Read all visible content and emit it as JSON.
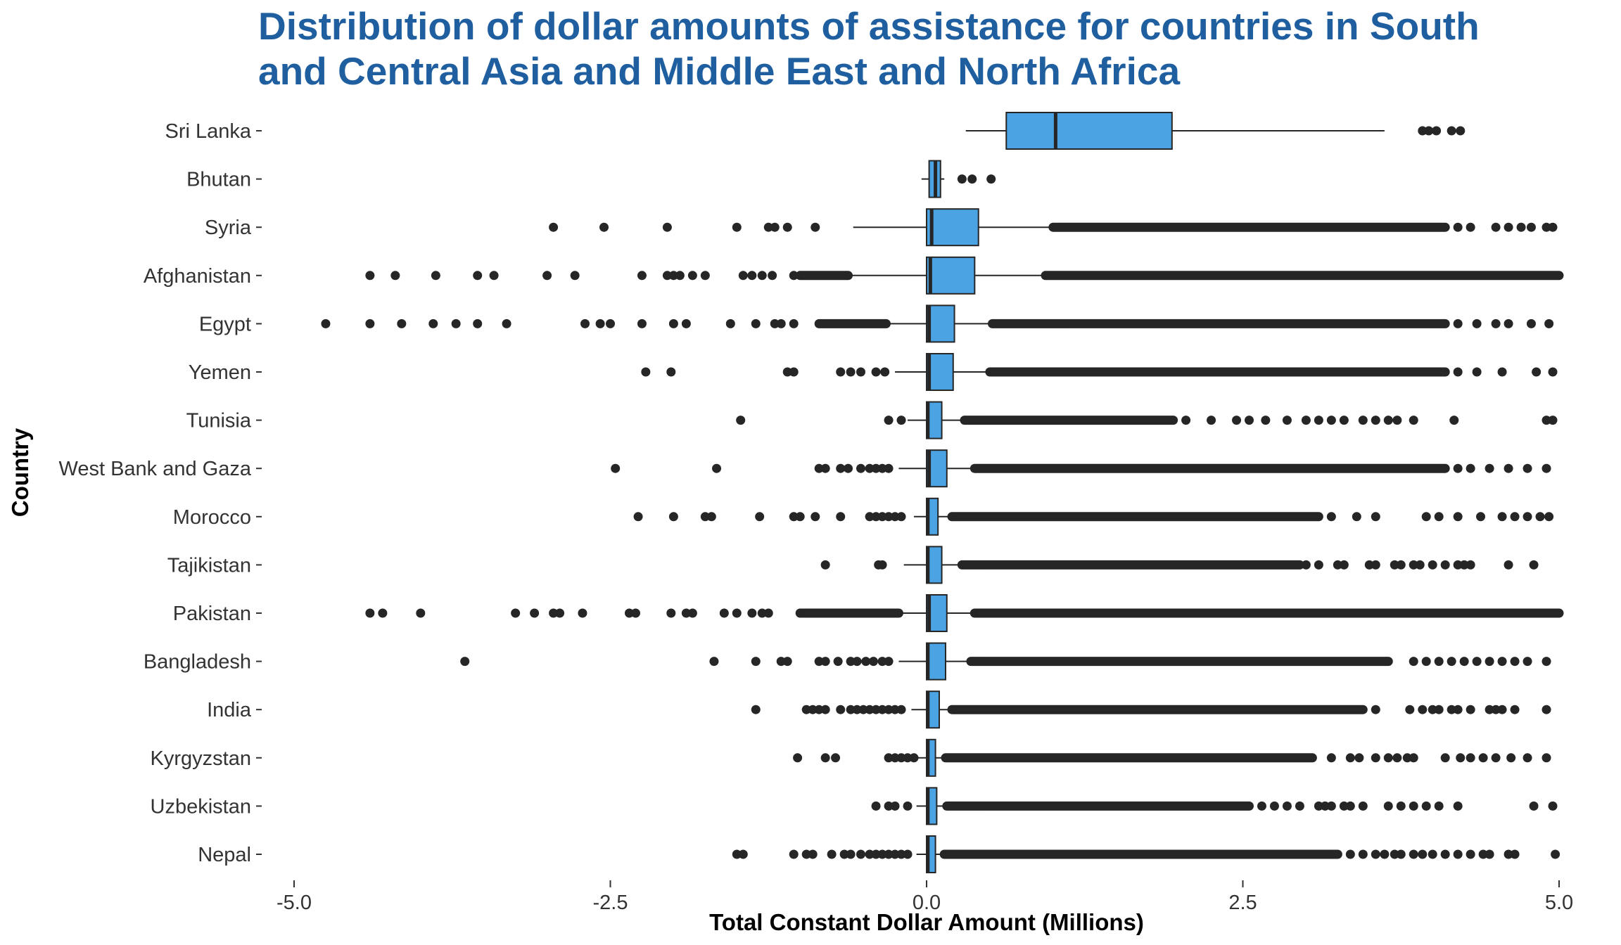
{
  "chart_data": {
    "type": "boxplot",
    "title_lines": [
      "Distribution of dollar amounts of assistance for countries in South",
      "and Central Asia and Middle East and North Africa"
    ],
    "xlabel": "Total Constant Dollar Amount (Millions)",
    "ylabel": "Country",
    "xlim": [
      -5.0,
      5.0
    ],
    "x_ticks": [
      -5.0,
      -2.5,
      0.0,
      2.5,
      5.0
    ],
    "x_tick_labels": [
      "-5.0",
      "-2.5",
      "0.0",
      "2.5",
      "5.0"
    ],
    "grid": false,
    "legend": "none",
    "colors": {
      "title": "#1F5FA0",
      "box_fill": "#4BA3E3",
      "box_stroke": "#262626",
      "outlier": "#262626"
    },
    "categories": [
      "Sri Lanka",
      "Bhutan",
      "Syria",
      "Afghanistan",
      "Egypt",
      "Yemen",
      "Tunisia",
      "West Bank and Gaza",
      "Morocco",
      "Tajikistan",
      "Pakistan",
      "Bangladesh",
      "India",
      "Kyrgyzstan",
      "Uzbekistan",
      "Nepal"
    ],
    "series": [
      {
        "country": "Sri Lanka",
        "whisker_low": 0.31,
        "q1": 0.63,
        "median": 1.02,
        "q3": 1.94,
        "whisker_high": 3.62,
        "outliers_low": [],
        "outliers_high": [
          3.92,
          3.97,
          4.03,
          4.15,
          4.22
        ],
        "dense_high": null,
        "dense_low": null
      },
      {
        "country": "Bhutan",
        "whisker_low": -0.04,
        "q1": 0.02,
        "median": 0.07,
        "q3": 0.11,
        "whisker_high": 0.14,
        "outliers_low": [],
        "outliers_high": [
          0.28,
          0.36,
          0.51
        ],
        "dense_high": null,
        "dense_low": null
      },
      {
        "country": "Syria",
        "whisker_low": -0.58,
        "q1": 0.0,
        "median": 0.04,
        "q3": 0.41,
        "whisker_high": 1.0,
        "outliers_low": [
          -2.95,
          -2.55,
          -2.05,
          -1.5,
          -1.25,
          -1.2,
          -1.1,
          -0.88
        ],
        "outliers_high": [
          4.2,
          4.3,
          4.5,
          4.6,
          4.7,
          4.78,
          4.9,
          4.95
        ],
        "dense_high": [
          1.0,
          4.1
        ],
        "dense_low": null
      },
      {
        "country": "Afghanistan",
        "whisker_low": -0.62,
        "q1": 0.0,
        "median": 0.03,
        "q3": 0.38,
        "whisker_high": 0.94,
        "outliers_low": [
          -4.4,
          -4.2,
          -3.88,
          -3.55,
          -3.42,
          -3.0,
          -2.78,
          -2.25,
          -2.05,
          -2.0,
          -1.95,
          -1.85,
          -1.75,
          -1.45,
          -1.38,
          -1.3,
          -1.22,
          -1.05
        ],
        "outliers_high": [],
        "dense_high": [
          0.94,
          5.0
        ],
        "dense_low": [
          -1.0,
          -0.62
        ]
      },
      {
        "country": "Egypt",
        "whisker_low": -0.32,
        "q1": 0.0,
        "median": 0.02,
        "q3": 0.22,
        "whisker_high": 0.52,
        "outliers_low": [
          -4.75,
          -4.4,
          -4.15,
          -3.9,
          -3.72,
          -3.55,
          -3.32,
          -2.7,
          -2.58,
          -2.5,
          -2.25,
          -2.0,
          -1.9,
          -1.55,
          -1.35,
          -1.2,
          -1.15,
          -1.05
        ],
        "outliers_high": [
          4.2,
          4.35,
          4.5,
          4.6,
          4.78,
          4.92
        ],
        "dense_high": [
          0.52,
          4.1
        ],
        "dense_low": [
          -0.85,
          -0.32
        ]
      },
      {
        "country": "Yemen",
        "whisker_low": -0.25,
        "q1": 0.0,
        "median": 0.02,
        "q3": 0.21,
        "whisker_high": 0.5,
        "outliers_low": [
          -2.22,
          -2.02,
          -1.1,
          -1.05,
          -0.68,
          -0.6,
          -0.52,
          -0.4,
          -0.33
        ],
        "outliers_high": [
          4.2,
          4.35,
          4.55,
          4.82,
          4.95
        ],
        "dense_high": [
          0.5,
          4.1
        ],
        "dense_low": null
      },
      {
        "country": "Tunisia",
        "whisker_low": -0.15,
        "q1": 0.0,
        "median": 0.01,
        "q3": 0.12,
        "whisker_high": 0.3,
        "outliers_low": [
          -1.47,
          -0.3,
          -0.2
        ],
        "outliers_high": [
          2.05,
          2.25,
          2.45,
          2.55,
          2.68,
          2.85,
          3.0,
          3.1,
          3.2,
          3.3,
          3.45,
          3.55,
          3.65,
          3.72,
          3.85,
          4.17,
          4.9,
          4.95
        ],
        "dense_high": [
          0.3,
          1.95
        ],
        "dense_low": null
      },
      {
        "country": "West Bank and Gaza",
        "whisker_low": -0.22,
        "q1": 0.0,
        "median": 0.02,
        "q3": 0.16,
        "whisker_high": 0.38,
        "outliers_low": [
          -2.46,
          -1.66,
          -0.85,
          -0.8,
          -0.68,
          -0.62,
          -0.52,
          -0.45,
          -0.4,
          -0.35,
          -0.3
        ],
        "outliers_high": [
          4.2,
          4.3,
          4.45,
          4.6,
          4.75,
          4.9
        ],
        "dense_high": [
          0.38,
          4.1
        ],
        "dense_low": null
      },
      {
        "country": "Morocco",
        "whisker_low": -0.1,
        "q1": 0.0,
        "median": 0.01,
        "q3": 0.09,
        "whisker_high": 0.2,
        "outliers_low": [
          -2.28,
          -2.0,
          -1.75,
          -1.7,
          -1.32,
          -1.05,
          -1.0,
          -0.88,
          -0.68,
          -0.45,
          -0.4,
          -0.35,
          -0.3,
          -0.25,
          -0.2
        ],
        "outliers_high": [
          3.2,
          3.4,
          3.55,
          3.95,
          4.05,
          4.2,
          4.38,
          4.55,
          4.65,
          4.75,
          4.85,
          4.92
        ],
        "dense_high": [
          0.2,
          3.1
        ],
        "dense_low": null
      },
      {
        "country": "Tajikistan",
        "whisker_low": -0.18,
        "q1": 0.0,
        "median": 0.01,
        "q3": 0.12,
        "whisker_high": 0.28,
        "outliers_low": [
          -0.8,
          -0.38,
          -0.35
        ],
        "outliers_high": [
          3.0,
          3.1,
          3.25,
          3.3,
          3.5,
          3.55,
          3.7,
          3.75,
          3.85,
          3.9,
          4.0,
          4.1,
          4.2,
          4.25,
          4.3,
          4.6,
          4.8
        ],
        "dense_high": [
          0.28,
          2.95
        ],
        "dense_low": null
      },
      {
        "country": "Pakistan",
        "whisker_low": -0.22,
        "q1": 0.0,
        "median": 0.02,
        "q3": 0.16,
        "whisker_high": 0.38,
        "outliers_low": [
          -4.4,
          -4.3,
          -4.0,
          -3.25,
          -3.1,
          -2.95,
          -2.9,
          -2.72,
          -2.35,
          -2.3,
          -2.02,
          -1.9,
          -1.85,
          -1.6,
          -1.5,
          -1.38,
          -1.3,
          -1.25
        ],
        "outliers_high": [],
        "dense_high": [
          0.38,
          5.0
        ],
        "dense_low": [
          -1.0,
          -0.22
        ]
      },
      {
        "country": "Bangladesh",
        "whisker_low": -0.22,
        "q1": 0.0,
        "median": 0.01,
        "q3": 0.15,
        "whisker_high": 0.35,
        "outliers_low": [
          -3.65,
          -1.68,
          -1.35,
          -1.15,
          -1.1,
          -0.85,
          -0.8,
          -0.7,
          -0.6,
          -0.55,
          -0.48,
          -0.42,
          -0.35,
          -0.3
        ],
        "outliers_high": [
          3.85,
          3.95,
          4.05,
          4.15,
          4.25,
          4.35,
          4.45,
          4.55,
          4.65,
          4.75,
          4.9
        ],
        "dense_high": [
          0.35,
          3.65
        ],
        "dense_low": null
      },
      {
        "country": "India",
        "whisker_low": -0.12,
        "q1": 0.0,
        "median": 0.01,
        "q3": 0.1,
        "whisker_high": 0.2,
        "outliers_low": [
          -1.35,
          -0.95,
          -0.9,
          -0.85,
          -0.8,
          -0.68,
          -0.6,
          -0.55,
          -0.5,
          -0.45,
          -0.4,
          -0.35,
          -0.3,
          -0.25,
          -0.2
        ],
        "outliers_high": [
          3.55,
          3.82,
          3.92,
          4.0,
          4.05,
          4.15,
          4.2,
          4.3,
          4.45,
          4.5,
          4.55,
          4.65,
          4.9
        ],
        "dense_high": [
          0.2,
          3.45
        ],
        "dense_low": null
      },
      {
        "country": "Kyrgyzstan",
        "whisker_low": -0.08,
        "q1": 0.0,
        "median": 0.01,
        "q3": 0.07,
        "whisker_high": 0.15,
        "outliers_low": [
          -1.02,
          -0.8,
          -0.72,
          -0.3,
          -0.25,
          -0.2,
          -0.15,
          -0.1
        ],
        "outliers_high": [
          3.2,
          3.35,
          3.42,
          3.55,
          3.65,
          3.72,
          3.8,
          3.85,
          4.1,
          4.22,
          4.3,
          4.4,
          4.5,
          4.62,
          4.75,
          4.9
        ],
        "dense_high": [
          0.15,
          3.05
        ],
        "dense_low": null
      },
      {
        "country": "Uzbekistan",
        "whisker_low": -0.08,
        "q1": 0.0,
        "median": 0.01,
        "q3": 0.08,
        "whisker_high": 0.16,
        "outliers_low": [
          -0.4,
          -0.3,
          -0.25,
          -0.15
        ],
        "outliers_high": [
          2.65,
          2.75,
          2.85,
          2.95,
          3.1,
          3.15,
          3.2,
          3.3,
          3.35,
          3.45,
          3.65,
          3.75,
          3.85,
          3.95,
          4.05,
          4.2,
          4.8,
          4.95
        ],
        "dense_high": [
          0.16,
          2.55
        ],
        "dense_low": null
      },
      {
        "country": "Nepal",
        "whisker_low": -0.08,
        "q1": 0.0,
        "median": 0.01,
        "q3": 0.07,
        "whisker_high": 0.14,
        "outliers_low": [
          -1.5,
          -1.45,
          -1.05,
          -0.95,
          -0.9,
          -0.75,
          -0.65,
          -0.6,
          -0.52,
          -0.45,
          -0.4,
          -0.35,
          -0.3,
          -0.25,
          -0.2,
          -0.15
        ],
        "outliers_high": [
          3.35,
          3.45,
          3.55,
          3.62,
          3.7,
          3.75,
          3.85,
          3.92,
          4.0,
          4.1,
          4.2,
          4.3,
          4.4,
          4.45,
          4.6,
          4.65,
          4.97
        ],
        "dense_high": [
          0.14,
          3.25
        ],
        "dense_low": null
      }
    ]
  }
}
